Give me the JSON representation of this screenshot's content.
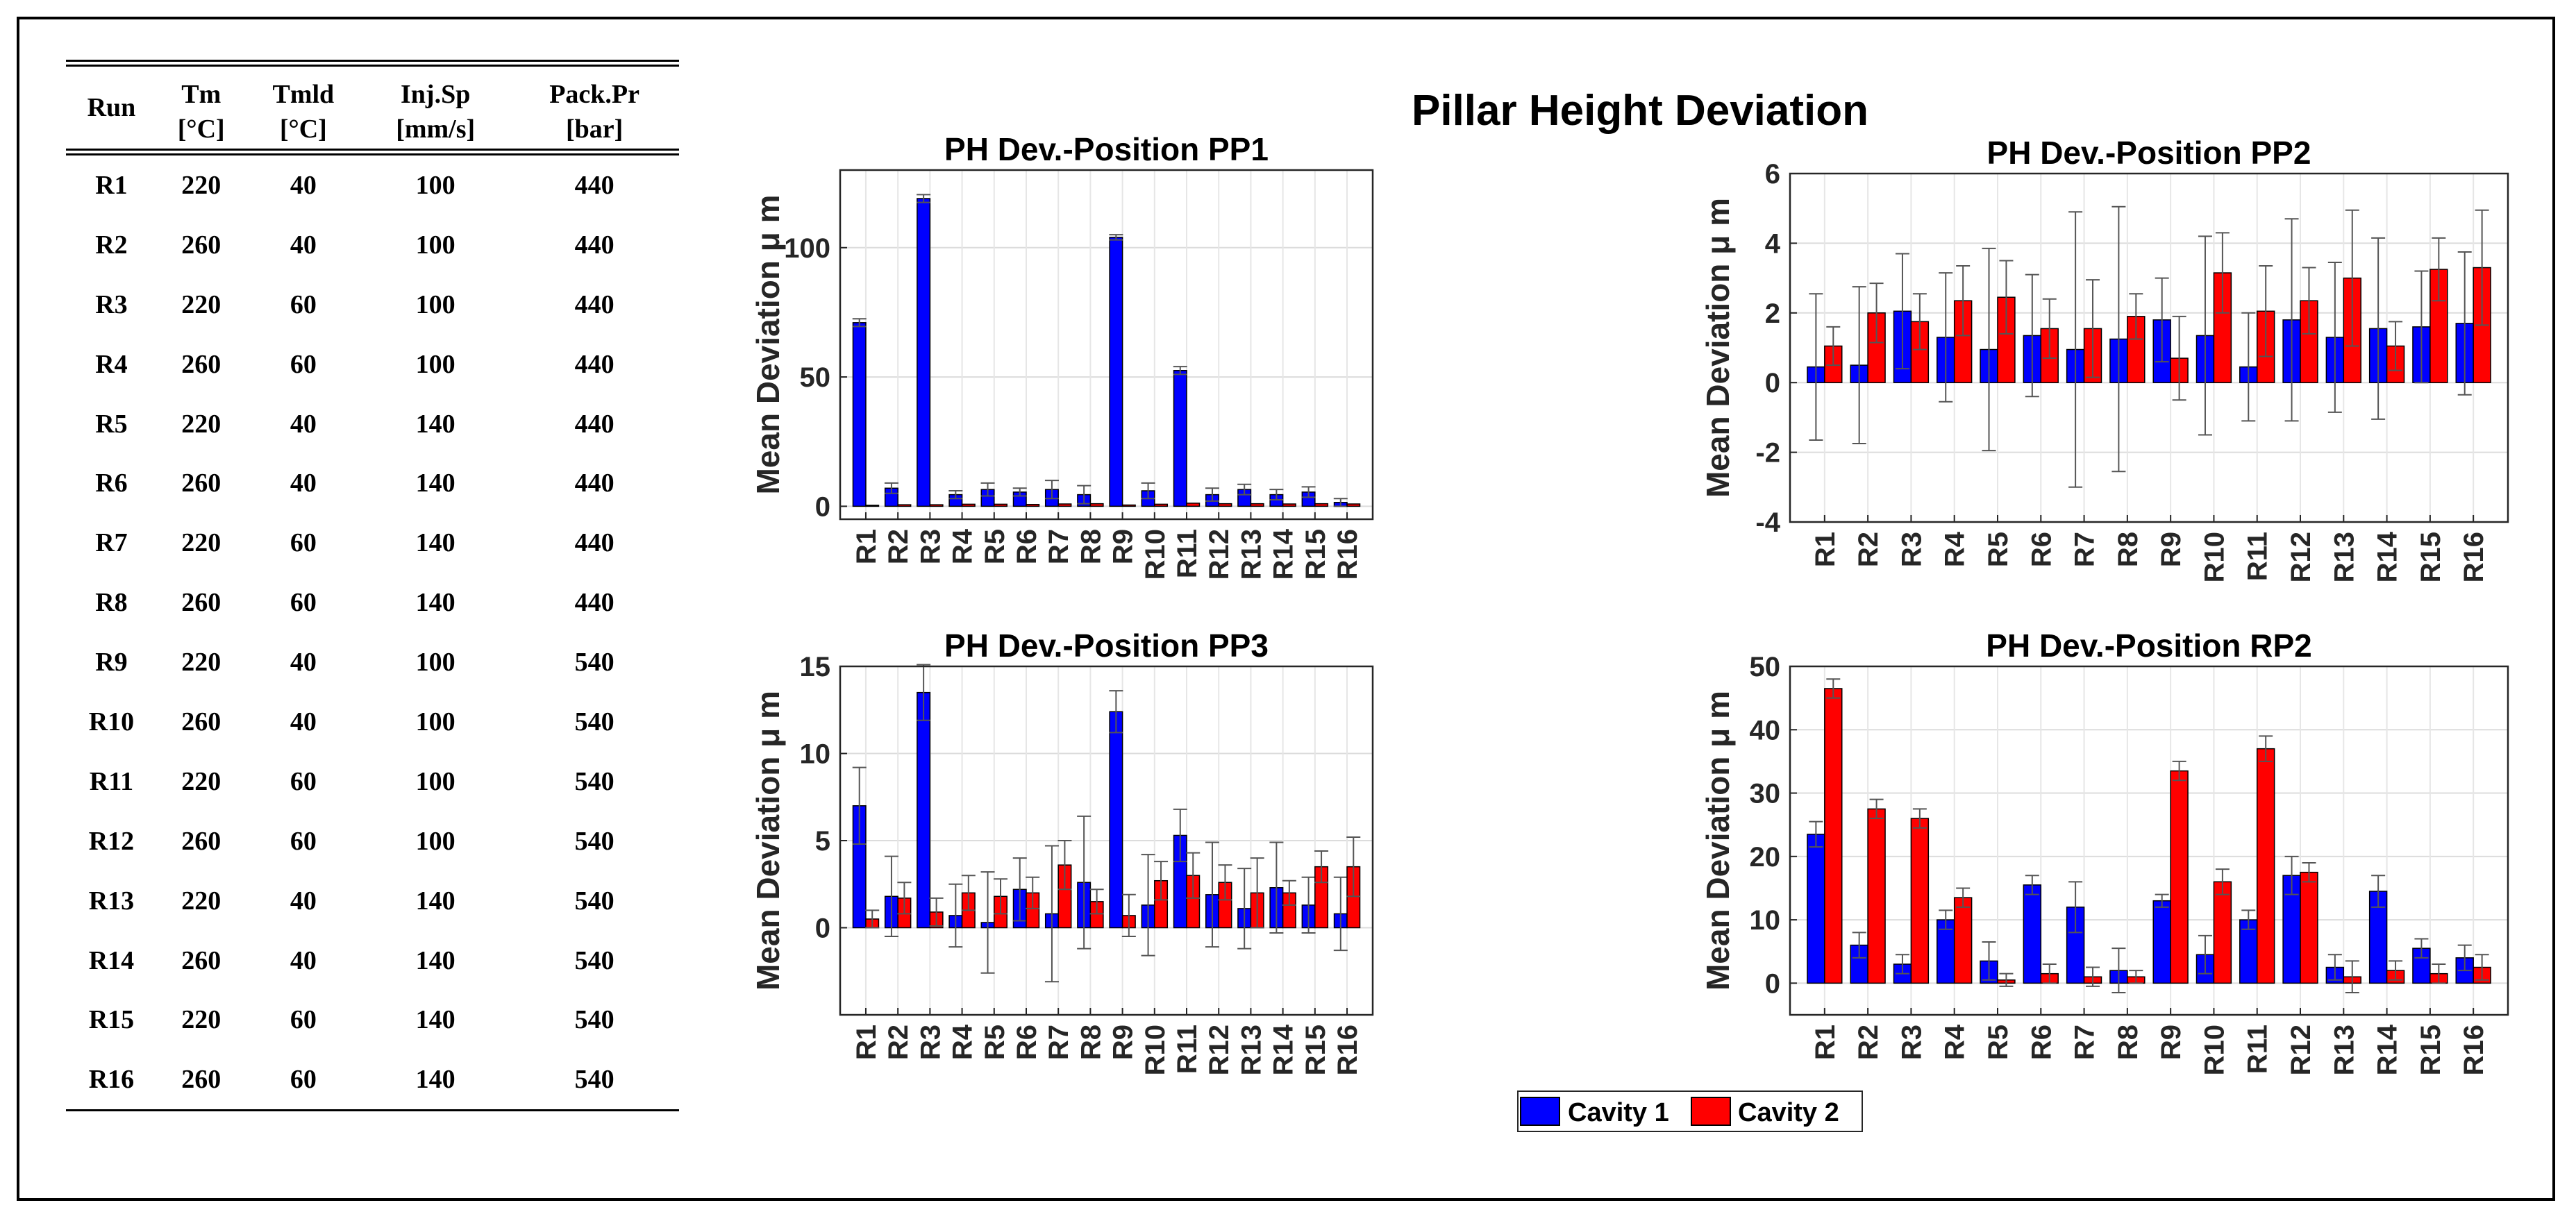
{
  "table": {
    "headers": [
      {
        "name": "Run",
        "unit": ""
      },
      {
        "name": "Tm",
        "unit": "[°C]"
      },
      {
        "name": "Tmld",
        "unit": "[°C]"
      },
      {
        "name": "Inj.Sp",
        "unit": "[mm/s]"
      },
      {
        "name": "Pack.Pr",
        "unit": "[bar]"
      }
    ],
    "rows": [
      [
        "R1",
        "220",
        "40",
        "100",
        "440"
      ],
      [
        "R2",
        "260",
        "40",
        "100",
        "440"
      ],
      [
        "R3",
        "220",
        "60",
        "100",
        "440"
      ],
      [
        "R4",
        "260",
        "60",
        "100",
        "440"
      ],
      [
        "R5",
        "220",
        "40",
        "140",
        "440"
      ],
      [
        "R6",
        "260",
        "40",
        "140",
        "440"
      ],
      [
        "R7",
        "220",
        "60",
        "140",
        "440"
      ],
      [
        "R8",
        "260",
        "60",
        "140",
        "440"
      ],
      [
        "R9",
        "220",
        "40",
        "100",
        "540"
      ],
      [
        "R10",
        "260",
        "40",
        "100",
        "540"
      ],
      [
        "R11",
        "220",
        "60",
        "100",
        "540"
      ],
      [
        "R12",
        "260",
        "60",
        "100",
        "540"
      ],
      [
        "R13",
        "220",
        "40",
        "140",
        "540"
      ],
      [
        "R14",
        "260",
        "40",
        "140",
        "540"
      ],
      [
        "R15",
        "220",
        "60",
        "140",
        "540"
      ],
      [
        "R16",
        "260",
        "60",
        "140",
        "540"
      ]
    ]
  },
  "figure_title": "Pillar Height Deviation",
  "legend": {
    "placement": "bottom-center",
    "entries": [
      {
        "name": "Cavity 1",
        "color": "#0000ff"
      },
      {
        "name": "Cavity 2",
        "color": "#ff0000"
      }
    ]
  },
  "chart_data": [
    {
      "type": "bar",
      "title": "PH Dev.-Position PP1",
      "ylabel": "Mean Deviation μ m",
      "categories": [
        "R1",
        "R2",
        "R3",
        "R4",
        "R5",
        "R6",
        "R7",
        "R8",
        "R9",
        "R10",
        "R11",
        "R12",
        "R13",
        "R14",
        "R15",
        "R16"
      ],
      "ylim": [
        -5,
        130
      ],
      "yticks": [
        0,
        50,
        100
      ],
      "grid": true,
      "series": [
        {
          "name": "Cavity 1",
          "color": "#0000ff",
          "values": [
            71,
            7,
            119,
            4.5,
            6.5,
            5.5,
            6.5,
            4.5,
            104,
            6,
            52.5,
            4.5,
            6.5,
            4.5,
            5.5,
            1.5
          ],
          "errors": [
            1.5,
            2,
            1.5,
            1.5,
            2.5,
            1.5,
            3.5,
            3.5,
            1,
            3,
            1.5,
            2.5,
            2,
            2,
            2,
            1.5
          ]
        },
        {
          "name": "Cavity 2",
          "color": "#ff0000",
          "values": [
            0.4,
            0.6,
            0.6,
            0.8,
            0.8,
            0.7,
            0.9,
            1,
            0.5,
            0.8,
            1.2,
            1,
            1,
            0.9,
            1,
            0.9
          ],
          "errors": [
            0,
            0,
            0,
            0,
            0,
            0,
            0,
            0,
            0,
            0,
            0,
            0,
            0,
            0,
            0,
            0
          ]
        }
      ]
    },
    {
      "type": "bar",
      "title": "PH Dev.-Position PP2",
      "ylabel": "Mean Deviation μ m",
      "categories": [
        "R1",
        "R2",
        "R3",
        "R4",
        "R5",
        "R6",
        "R7",
        "R8",
        "R9",
        "R10",
        "R11",
        "R12",
        "R13",
        "R14",
        "R15",
        "R16"
      ],
      "ylim": [
        -4,
        6
      ],
      "yticks": [
        -4,
        -2,
        0,
        2,
        4,
        6
      ],
      "grid": true,
      "series": [
        {
          "name": "Cavity 1",
          "color": "#0000ff",
          "values": [
            0.45,
            0.5,
            2.05,
            1.3,
            0.95,
            1.35,
            0.95,
            1.25,
            1.8,
            1.35,
            0.45,
            1.8,
            1.3,
            1.55,
            1.6,
            1.7
          ],
          "errors": [
            2.1,
            2.25,
            1.65,
            1.85,
            2.9,
            1.75,
            3.95,
            3.8,
            1.2,
            2.85,
            1.55,
            2.9,
            2.15,
            2.6,
            1.6,
            2.05
          ]
        },
        {
          "name": "Cavity 2",
          "color": "#ff0000",
          "values": [
            1.05,
            2.0,
            1.75,
            2.35,
            2.45,
            1.55,
            1.55,
            1.9,
            0.7,
            3.15,
            2.05,
            2.35,
            3.0,
            1.05,
            3.25,
            3.3
          ],
          "errors": [
            0.55,
            0.85,
            0.8,
            1.0,
            1.05,
            0.85,
            1.4,
            0.65,
            1.2,
            1.15,
            1.3,
            0.95,
            1.95,
            0.7,
            0.9,
            1.65
          ]
        }
      ]
    },
    {
      "type": "bar",
      "title": "PH Dev.-Position PP3",
      "ylabel": "Mean Deviation μ m",
      "categories": [
        "R1",
        "R2",
        "R3",
        "R4",
        "R5",
        "R6",
        "R7",
        "R8",
        "R9",
        "R10",
        "R11",
        "R12",
        "R13",
        "R14",
        "R15",
        "R16"
      ],
      "ylim": [
        -5,
        15
      ],
      "yticks": [
        0,
        5,
        10,
        15
      ],
      "grid": true,
      "series": [
        {
          "name": "Cavity 1",
          "color": "#0000ff",
          "values": [
            7.0,
            1.8,
            13.5,
            0.7,
            0.3,
            2.2,
            0.8,
            2.6,
            12.4,
            1.3,
            5.3,
            1.9,
            1.1,
            2.3,
            1.3,
            0.8
          ],
          "errors": [
            2.2,
            2.3,
            1.6,
            1.8,
            2.9,
            1.8,
            3.9,
            3.8,
            1.2,
            2.9,
            1.5,
            3.0,
            2.3,
            2.6,
            1.6,
            2.1
          ]
        },
        {
          "name": "Cavity 2",
          "color": "#ff0000",
          "values": [
            0.5,
            1.7,
            0.9,
            2.0,
            1.8,
            2.0,
            3.6,
            1.5,
            0.7,
            2.7,
            3.0,
            2.6,
            2.0,
            2.0,
            3.5,
            3.5
          ],
          "errors": [
            0.5,
            0.9,
            0.8,
            1.0,
            1.0,
            0.9,
            1.4,
            0.7,
            1.2,
            1.1,
            1.3,
            1.0,
            2.0,
            0.7,
            0.9,
            1.7
          ]
        }
      ]
    },
    {
      "type": "bar",
      "title": "PH Dev.-Position RP2",
      "ylabel": "Mean Deviation μ m",
      "categories": [
        "R1",
        "R2",
        "R3",
        "R4",
        "R5",
        "R6",
        "R7",
        "R8",
        "R9",
        "R10",
        "R11",
        "R12",
        "R13",
        "R14",
        "R15",
        "R16"
      ],
      "ylim": [
        -5,
        50
      ],
      "yticks": [
        0,
        10,
        20,
        30,
        40,
        50
      ],
      "grid": true,
      "series": [
        {
          "name": "Cavity 1",
          "color": "#0000ff",
          "values": [
            23.5,
            6.0,
            3.0,
            10.0,
            3.5,
            15.5,
            12.0,
            2.0,
            13.0,
            4.5,
            10.0,
            17.0,
            2.5,
            14.5,
            5.5,
            4.0
          ],
          "errors": [
            2.0,
            2.0,
            1.5,
            1.5,
            3.0,
            1.5,
            4.0,
            3.5,
            1.0,
            3.0,
            1.5,
            3.0,
            2.0,
            2.5,
            1.5,
            2.0
          ]
        },
        {
          "name": "Cavity 2",
          "color": "#ff0000",
          "values": [
            46.5,
            27.5,
            26.0,
            13.5,
            0.5,
            1.5,
            1.0,
            1.0,
            33.5,
            16.0,
            37.0,
            17.5,
            1.0,
            2.0,
            1.5,
            2.5
          ],
          "errors": [
            1.5,
            1.5,
            1.5,
            1.5,
            1.0,
            1.5,
            1.5,
            1.0,
            1.5,
            2.0,
            2.0,
            1.5,
            2.5,
            1.5,
            1.5,
            2.0
          ]
        }
      ]
    }
  ]
}
